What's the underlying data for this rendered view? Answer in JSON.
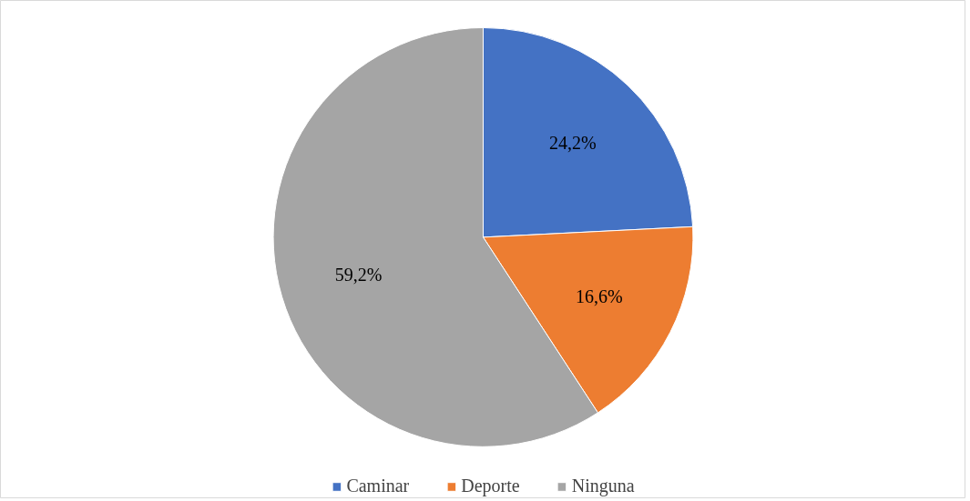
{
  "chart_data": {
    "type": "pie",
    "categories": [
      "Caminar",
      "Deporte",
      "Ninguna"
    ],
    "values": [
      24.2,
      16.6,
      59.2
    ],
    "value_labels": [
      "24,2%",
      "16,6%",
      "59,2%"
    ],
    "colors": [
      "#4472c4",
      "#ed7d31",
      "#a5a5a5"
    ],
    "legend": "bottom"
  }
}
